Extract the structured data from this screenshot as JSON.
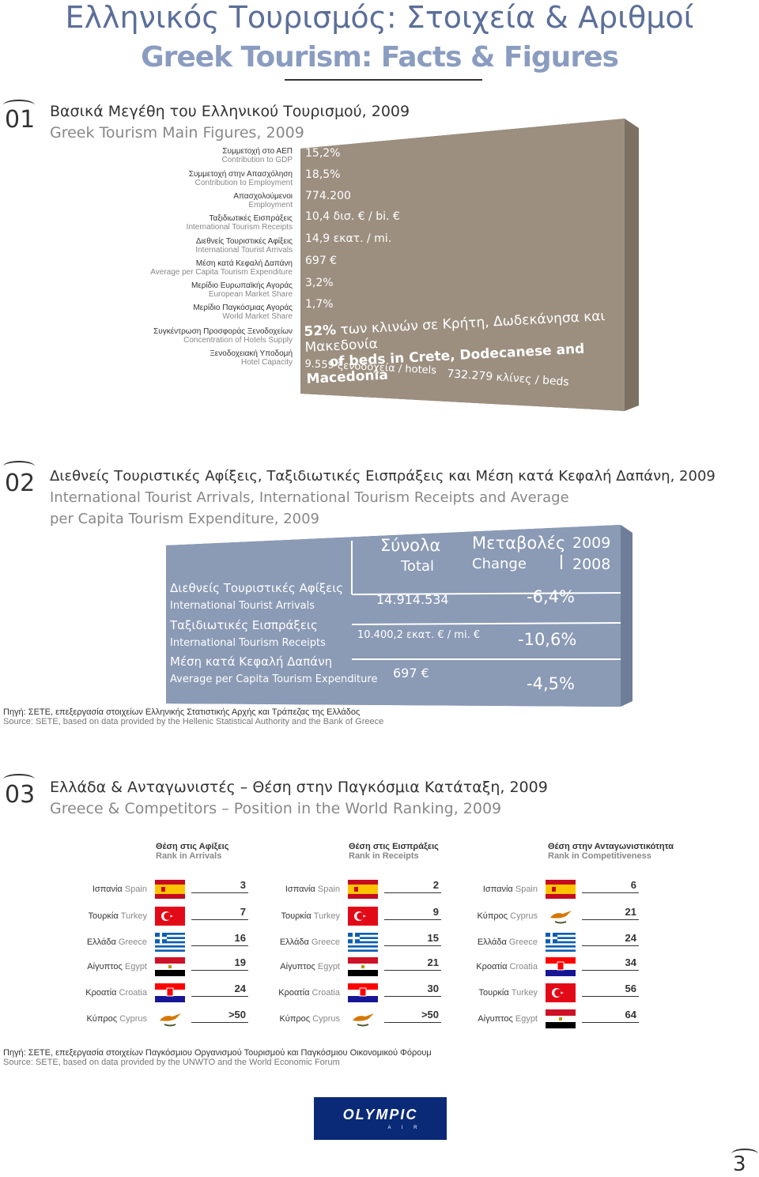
{
  "header": {
    "title_gr": "Ελληνικός Τουρισμός: Στοιχεία & Αριθμοί",
    "title_en": "Greek Tourism: Facts & Figures"
  },
  "section1": {
    "num": "01",
    "heading_gr": "Βασικά Μεγέθη του Ελληνικού Τουρισμού, 2009",
    "heading_en": "Greek Tourism Main Figures, 2009",
    "labels": [
      {
        "gr": "Συμμετοχή στο ΑΕΠ",
        "en": "Contribution to GDP"
      },
      {
        "gr": "Συμμετοχή στην Απασχόληση",
        "en": "Contribution to Employment"
      },
      {
        "gr": "Απασχολούμενοι",
        "en": "Employment"
      },
      {
        "gr": "Ταξιδιωτικές Εισπράξεις",
        "en": "International Tourism Receipts"
      },
      {
        "gr": "Διεθνείς Τουριστικές Αφίξεις",
        "en": "International Tourist Arrivals"
      },
      {
        "gr": "Μέση κατά Κεφαλή Δαπάνη",
        "en": "Average per Capita Tourism Expenditure"
      },
      {
        "gr": "Μερίδιο Ευρωπαϊκής Αγοράς",
        "en": "European Market Share"
      },
      {
        "gr": "Μερίδιο Παγκόσμιας Αγοράς",
        "en": "World Market Share"
      },
      {
        "gr": "Συγκέντρωση Προσφοράς Ξενοδοχείων",
        "en": "Concentration of Hotels Supply"
      },
      {
        "gr": "Ξενοδοχειακή Υποδομή",
        "en": "Hotel Capacity"
      }
    ],
    "values": [
      "15,2%",
      "18,5%",
      "774.200",
      "10,4 δισ. € / bi. €",
      "14,9 εκατ. / mi.",
      "697 €",
      "3,2%",
      "1,7%"
    ],
    "concentration_pct": "52%",
    "concentration_gr": "των κλινών σε Κρήτη, Δωδεκάνησα και Μακεδονία",
    "concentration_en": "of beds in Crete, Dodecanese and Macedonia",
    "hotels": "9.559 ξενοδοχεία / hotels",
    "beds": "732.279 κλίνες / beds"
  },
  "section2": {
    "num": "02",
    "heading_gr": "Διεθνείς Τουριστικές Αφίξεις, Ταξιδιωτικές Εισπράξεις και Μέση κατά Κεφαλή Δαπάνη, 2009",
    "heading_en1": "International Tourist Arrivals, International Tourism Receipts and Average",
    "heading_en2": "per Capita Tourism Expenditure, 2009",
    "col_total_gr": "Σύνολα",
    "col_total_en": "Total",
    "col_change_gr": "Μεταβολές",
    "col_change_en": "Change",
    "year1": "2009",
    "year2": "2008",
    "rows": [
      {
        "gr": "Διεθνείς Τουριστικές Αφίξεις",
        "en": "International Tourist Arrivals",
        "total": "14.914.534",
        "change": "-6,4%"
      },
      {
        "gr": "Ταξιδιωτικές Εισπράξεις",
        "en": "International Tourism Receipts",
        "total": "10.400,2 εκατ. € / mi. €",
        "change": "-10,6%"
      },
      {
        "gr": "Μέση κατά Κεφαλή Δαπάνη",
        "en": "Average per Capita Tourism Expenditure",
        "total": "697 €",
        "change": "-4,5%"
      }
    ],
    "source_gr": "Πηγή: ΣΕΤΕ, επεξεργασία στοιχείων Ελληνικής Στατιστικής Αρχής και Τράπεζας της Ελλάδος",
    "source_en": "Source: SETE, based on data provided by the Hellenic Statistical Authority and the Bank of Greece"
  },
  "section3": {
    "num": "03",
    "heading_gr": "Ελλάδα & Ανταγωνιστές – Θέση στην Παγκόσμια Κατάταξη, 2009",
    "heading_en": "Greece & Competitors – Position in the World Ranking, 2009",
    "columns": [
      {
        "head_gr": "Θέση στις Αφίξεις",
        "head_en": "Rank in Arrivals",
        "rows": [
          {
            "gr": "Ισπανία",
            "en": "Spain",
            "flag": "spain",
            "rank": "3"
          },
          {
            "gr": "Τουρκία",
            "en": "Turkey",
            "flag": "turkey",
            "rank": "7"
          },
          {
            "gr": "Ελλάδα",
            "en": "Greece",
            "flag": "greece",
            "rank": "16"
          },
          {
            "gr": "Αίγυπτος",
            "en": "Egypt",
            "flag": "egypt",
            "rank": "19"
          },
          {
            "gr": "Κροατία",
            "en": "Croatia",
            "flag": "croatia",
            "rank": "24"
          },
          {
            "gr": "Κύπρος",
            "en": "Cyprus",
            "flag": "cyprus",
            "rank": ">50"
          }
        ]
      },
      {
        "head_gr": "Θέση στις Εισπράξεις",
        "head_en": "Rank in Receipts",
        "rows": [
          {
            "gr": "Ισπανία",
            "en": "Spain",
            "flag": "spain",
            "rank": "2"
          },
          {
            "gr": "Τουρκία",
            "en": "Turkey",
            "flag": "turkey",
            "rank": "9"
          },
          {
            "gr": "Ελλάδα",
            "en": "Greece",
            "flag": "greece",
            "rank": "15"
          },
          {
            "gr": "Αίγυπτος",
            "en": "Egypt",
            "flag": "egypt",
            "rank": "21"
          },
          {
            "gr": "Κροατία",
            "en": "Croatia",
            "flag": "croatia",
            "rank": "30"
          },
          {
            "gr": "Κύπρος",
            "en": "Cyprus",
            "flag": "cyprus",
            "rank": ">50"
          }
        ]
      },
      {
        "head_gr": "Θέση στην Ανταγωνιστικότητα",
        "head_en": "Rank in Competitiveness",
        "rows": [
          {
            "gr": "Ισπανία",
            "en": "Spain",
            "flag": "spain",
            "rank": "6"
          },
          {
            "gr": "Κύπρος",
            "en": "Cyprus",
            "flag": "cyprus",
            "rank": "21"
          },
          {
            "gr": "Ελλάδα",
            "en": "Greece",
            "flag": "greece",
            "rank": "24"
          },
          {
            "gr": "Κροατία",
            "en": "Croatia",
            "flag": "croatia",
            "rank": "34"
          },
          {
            "gr": "Τουρκία",
            "en": "Turkey",
            "flag": "turkey",
            "rank": "56"
          },
          {
            "gr": "Αίγυπτος",
            "en": "Egypt",
            "flag": "egypt",
            "rank": "64"
          }
        ]
      }
    ],
    "source_gr": "Πηγή: ΣΕΤΕ, επεξεργασία στοιχείων Παγκόσμιου Οργανισμού Τουρισμού και Παγκόσμιου Οικονομικού Φόρουμ",
    "source_en": "Source: SETE, based on data provided by the UNWTO and the World Economic Forum"
  },
  "logo": {
    "main": "OLYMPIC",
    "sub": "A I R"
  },
  "page_number": "3",
  "colors": {
    "wall": "#9c8f80",
    "wall_side": "#7d7163",
    "panel": "#8b9ab5",
    "panel_side": "#6e7d98",
    "title": "#5b6f99"
  }
}
